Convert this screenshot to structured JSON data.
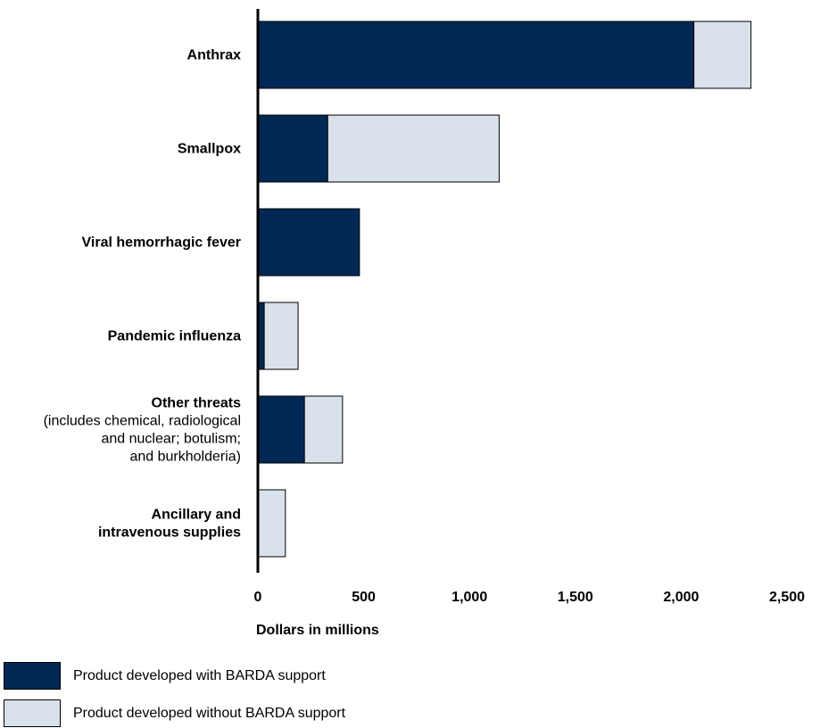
{
  "chart_data": {
    "type": "bar",
    "orientation": "horizontal",
    "stacked": true,
    "categories": [
      {
        "name": "Anthrax",
        "sub": []
      },
      {
        "name": "Smallpox",
        "sub": []
      },
      {
        "name": "Viral hemorrhagic fever",
        "sub": []
      },
      {
        "name": "Pandemic influenza",
        "sub": []
      },
      {
        "name": "Other threats",
        "sub": [
          "(includes chemical, radiological",
          "and nuclear; botulism;",
          "and burkholderia)"
        ]
      },
      {
        "name": "Ancillary and",
        "sub": [],
        "name2": "intravenous supplies"
      }
    ],
    "series": [
      {
        "name": "Product developed with BARDA support",
        "color": "#002855",
        "values": [
          2060,
          330,
          480,
          30,
          220,
          0
        ]
      },
      {
        "name": "Product developed without BARDA support",
        "color": "#d9e1ea",
        "values": [
          270,
          810,
          0,
          160,
          180,
          130
        ]
      }
    ],
    "xlabel": "Dollars in millions",
    "ylabel": "",
    "xlim": [
      0,
      2500
    ],
    "xticks": [
      "0",
      "500",
      "1,000",
      "1,500",
      "2,000",
      "2,500"
    ],
    "grid": false,
    "legend_position": "bottom-left"
  }
}
